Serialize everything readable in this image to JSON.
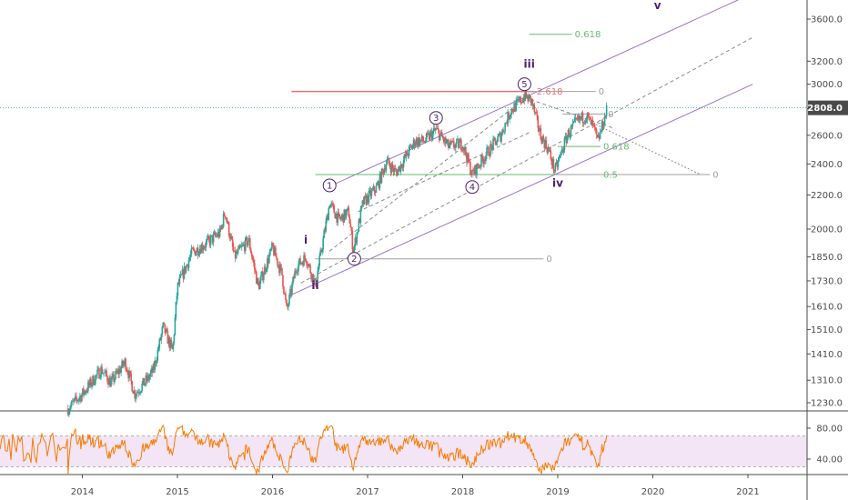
{
  "chart_data": {
    "type": "candlestick",
    "price_axis": {
      "scale": "log",
      "ticks": [
        "3600.0",
        "3200.0",
        "3000.0",
        "2800.0",
        "2600.0",
        "2400.0",
        "2200.0",
        "2000.0",
        "1850.0",
        "1730.0",
        "1610.0",
        "1510.0",
        "1410.0",
        "1310.0",
        "1230.0"
      ],
      "current_price": "2808.0"
    },
    "time_axis": {
      "ticks": [
        "2014",
        "2015",
        "2016",
        "2017",
        "2018",
        "2019",
        "2020",
        "2021"
      ]
    },
    "price_path": [
      {
        "t": 2013.85,
        "p": 1210
      },
      {
        "t": 2014.0,
        "p": 1260
      },
      {
        "t": 2014.2,
        "p": 1350
      },
      {
        "t": 2014.3,
        "p": 1300
      },
      {
        "t": 2014.45,
        "p": 1380
      },
      {
        "t": 2014.55,
        "p": 1260
      },
      {
        "t": 2014.7,
        "p": 1320
      },
      {
        "t": 2014.75,
        "p": 1350
      },
      {
        "t": 2014.85,
        "p": 1520
      },
      {
        "t": 2014.95,
        "p": 1420
      },
      {
        "t": 2015.0,
        "p": 1700
      },
      {
        "t": 2015.15,
        "p": 1870
      },
      {
        "t": 2015.3,
        "p": 1920
      },
      {
        "t": 2015.45,
        "p": 1980
      },
      {
        "t": 2015.5,
        "p": 2100
      },
      {
        "t": 2015.6,
        "p": 1850
      },
      {
        "t": 2015.75,
        "p": 1940
      },
      {
        "t": 2015.85,
        "p": 1700
      },
      {
        "t": 2016.0,
        "p": 1900
      },
      {
        "t": 2016.1,
        "p": 1760
      },
      {
        "t": 2016.15,
        "p": 1590
      },
      {
        "t": 2016.25,
        "p": 1800
      },
      {
        "t": 2016.35,
        "p": 1850
      },
      {
        "t": 2016.45,
        "p": 1710
      },
      {
        "t": 2016.6,
        "p": 2150
      },
      {
        "t": 2016.7,
        "p": 2050
      },
      {
        "t": 2016.8,
        "p": 2100
      },
      {
        "t": 2016.85,
        "p": 1880
      },
      {
        "t": 2016.95,
        "p": 2150
      },
      {
        "t": 2017.1,
        "p": 2250
      },
      {
        "t": 2017.2,
        "p": 2420
      },
      {
        "t": 2017.3,
        "p": 2340
      },
      {
        "t": 2017.5,
        "p": 2560
      },
      {
        "t": 2017.6,
        "p": 2560
      },
      {
        "t": 2017.72,
        "p": 2640
      },
      {
        "t": 2017.85,
        "p": 2520
      },
      {
        "t": 2018.0,
        "p": 2540
      },
      {
        "t": 2018.1,
        "p": 2330
      },
      {
        "t": 2018.25,
        "p": 2470
      },
      {
        "t": 2018.4,
        "p": 2600
      },
      {
        "t": 2018.5,
        "p": 2780
      },
      {
        "t": 2018.65,
        "p": 2900
      },
      {
        "t": 2018.72,
        "p": 2870
      },
      {
        "t": 2018.82,
        "p": 2600
      },
      {
        "t": 2018.9,
        "p": 2500
      },
      {
        "t": 2018.97,
        "p": 2350
      },
      {
        "t": 2019.1,
        "p": 2600
      },
      {
        "t": 2019.2,
        "p": 2700
      },
      {
        "t": 2019.3,
        "p": 2750
      },
      {
        "t": 2019.38,
        "p": 2650
      },
      {
        "t": 2019.42,
        "p": 2550
      },
      {
        "t": 2019.5,
        "p": 2750
      },
      {
        "t": 2019.52,
        "p": 2808
      }
    ],
    "rsi": {
      "ticks": [
        "80.00",
        "40.00"
      ],
      "levels": [
        70,
        30
      ],
      "line_color": "#f57c00",
      "band_color": "#f3e5f5"
    },
    "fib_levels": [
      {
        "label": "0.618",
        "price": 3450,
        "color": "#66bb6a"
      },
      {
        "label": "2.618",
        "price": 2940,
        "color": "#e57373"
      },
      {
        "label": "0",
        "price": 2940,
        "color": "#9e9e9e"
      },
      {
        "label": "0",
        "price": 2760,
        "color": "#9e9e9e"
      },
      {
        "label": "0.618",
        "price": 2520,
        "color": "#66bb6a"
      },
      {
        "label": "0.5",
        "price": 2330,
        "color": "#66bb6a"
      },
      {
        "label": "0",
        "price": 2330,
        "color": "#9e9e9e"
      },
      {
        "label": "0",
        "price": 1840,
        "color": "#9e9e9e"
      }
    ],
    "wave_labels": [
      {
        "label": "i",
        "t": 2016.35,
        "price": 1920,
        "style": "plain"
      },
      {
        "label": "ii",
        "t": 2016.45,
        "price": 1690,
        "style": "plain"
      },
      {
        "label": "iii",
        "t": 2018.7,
        "price": 3140,
        "style": "plain"
      },
      {
        "label": "iv",
        "t": 2019.0,
        "price": 2250,
        "style": "plain"
      },
      {
        "label": "v",
        "t": 2020.05,
        "price": 3700,
        "style": "plain"
      },
      {
        "label": "1",
        "t": 2016.6,
        "price": 2260,
        "style": "circled"
      },
      {
        "label": "2",
        "t": 2016.86,
        "price": 1840,
        "style": "circled"
      },
      {
        "label": "3",
        "t": 2017.72,
        "price": 2730,
        "style": "circled"
      },
      {
        "label": "4",
        "t": 2018.1,
        "price": 2250,
        "style": "circled"
      },
      {
        "label": "5",
        "t": 2018.65,
        "price": 3000,
        "style": "circled"
      }
    ],
    "colors": {
      "up": "#26a69a",
      "down": "#ef5350",
      "channel": "#9c73c8",
      "last_price_line": "#26a69a",
      "wave_label": "#4a1f6e",
      "axis_text": "#4a4a4a"
    }
  }
}
